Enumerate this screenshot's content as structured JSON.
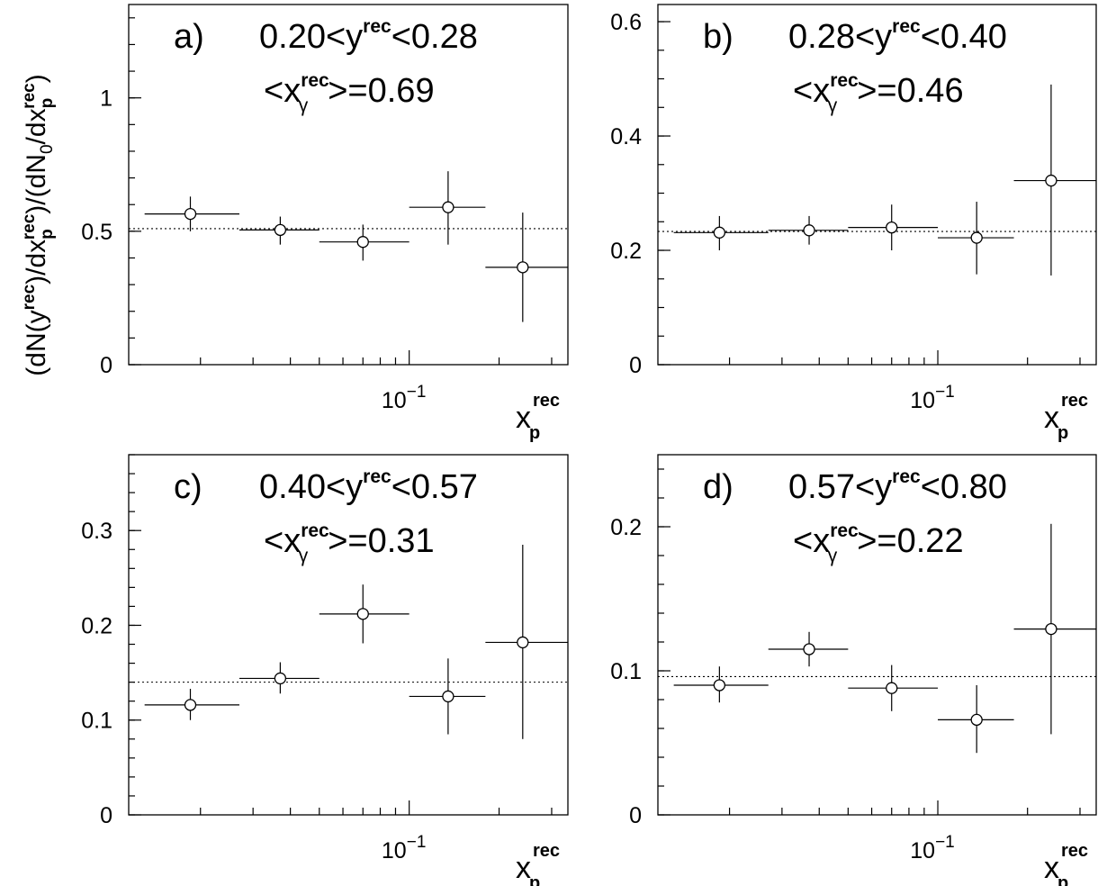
{
  "figure": {
    "ylabel": {
      "base": "(dN(y",
      "sup1": "rec",
      "mid1": ")/dx",
      "sub1": "p",
      "sup2": "rec",
      "mid2": ")/(dN",
      "sub2": "0",
      "mid3": "/dx",
      "sub3": "p",
      "sup3": "rec",
      "end": ")"
    }
  },
  "chart_data": [
    {
      "type": "scatter",
      "panel_label": "a)",
      "title": {
        "lo": "0.20<y",
        "sup": "rec",
        "hi": "<0.28"
      },
      "subtitle": {
        "pre": "<x",
        "sup": "rec",
        "sub": "γ",
        "post": ">=0.69"
      },
      "xlabel": {
        "base": "x",
        "sup": "rec",
        "sub": "p"
      },
      "xscale": "log",
      "xlim": [
        0.0115,
        0.34
      ],
      "ylim": [
        0,
        1.35
      ],
      "yticks": [
        0,
        0.5,
        1
      ],
      "ytick_labels": [
        "0",
        "0.5",
        "1"
      ],
      "yminor_step": 0.1,
      "xtick_label": {
        "base": "10",
        "exp": "−1",
        "value": 0.1
      },
      "reference_y": 0.51,
      "points": [
        {
          "x": 0.0185,
          "xlo": 0.013,
          "xhi": 0.027,
          "y": 0.565,
          "ylo": 0.5,
          "yhi": 0.63
        },
        {
          "x": 0.037,
          "xlo": 0.027,
          "xhi": 0.05,
          "y": 0.505,
          "ylo": 0.45,
          "yhi": 0.555
        },
        {
          "x": 0.07,
          "xlo": 0.05,
          "xhi": 0.1,
          "y": 0.46,
          "ylo": 0.39,
          "yhi": 0.525
        },
        {
          "x": 0.135,
          "xlo": 0.1,
          "xhi": 0.18,
          "y": 0.59,
          "ylo": 0.45,
          "yhi": 0.725
        },
        {
          "x": 0.24,
          "xlo": 0.18,
          "xhi": 0.34,
          "y": 0.365,
          "ylo": 0.16,
          "yhi": 0.57
        }
      ]
    },
    {
      "type": "scatter",
      "panel_label": "b)",
      "title": {
        "lo": "0.28<y",
        "sup": "rec",
        "hi": "<0.40"
      },
      "subtitle": {
        "pre": "<x",
        "sup": "rec",
        "sub": "γ",
        "post": ">=0.46"
      },
      "xlabel": {
        "base": "x",
        "sup": "rec",
        "sub": "p"
      },
      "xscale": "log",
      "xlim": [
        0.0115,
        0.34
      ],
      "ylim": [
        0,
        0.63
      ],
      "yticks": [
        0,
        0.2,
        0.4,
        0.6
      ],
      "ytick_labels": [
        "0",
        "0.2",
        "0.4",
        "0.6"
      ],
      "yminor_step": 0.05,
      "xtick_label": {
        "base": "10",
        "exp": "−1",
        "value": 0.1
      },
      "reference_y": 0.233,
      "points": [
        {
          "x": 0.0185,
          "xlo": 0.013,
          "xhi": 0.027,
          "y": 0.231,
          "ylo": 0.2,
          "yhi": 0.26
        },
        {
          "x": 0.037,
          "xlo": 0.027,
          "xhi": 0.05,
          "y": 0.235,
          "ylo": 0.21,
          "yhi": 0.26
        },
        {
          "x": 0.07,
          "xlo": 0.05,
          "xhi": 0.1,
          "y": 0.24,
          "ylo": 0.2,
          "yhi": 0.28
        },
        {
          "x": 0.135,
          "xlo": 0.1,
          "xhi": 0.18,
          "y": 0.222,
          "ylo": 0.158,
          "yhi": 0.285
        },
        {
          "x": 0.24,
          "xlo": 0.18,
          "xhi": 0.34,
          "y": 0.322,
          "ylo": 0.156,
          "yhi": 0.49
        }
      ]
    },
    {
      "type": "scatter",
      "panel_label": "c)",
      "title": {
        "lo": "0.40<y",
        "sup": "rec",
        "hi": "<0.57"
      },
      "subtitle": {
        "pre": "<x",
        "sup": "rec",
        "sub": "γ",
        "post": ">=0.31"
      },
      "xlabel": {
        "base": "x",
        "sup": "rec",
        "sub": "p"
      },
      "xscale": "log",
      "xlim": [
        0.0115,
        0.34
      ],
      "ylim": [
        0,
        0.38
      ],
      "yticks": [
        0,
        0.1,
        0.2,
        0.3
      ],
      "ytick_labels": [
        "0",
        "0.1",
        "0.2",
        "0.3"
      ],
      "yminor_step": 0.02,
      "xtick_label": {
        "base": "10",
        "exp": "−1",
        "value": 0.1
      },
      "reference_y": 0.14,
      "points": [
        {
          "x": 0.0185,
          "xlo": 0.013,
          "xhi": 0.027,
          "y": 0.116,
          "ylo": 0.1,
          "yhi": 0.133
        },
        {
          "x": 0.037,
          "xlo": 0.027,
          "xhi": 0.05,
          "y": 0.144,
          "ylo": 0.128,
          "yhi": 0.161
        },
        {
          "x": 0.07,
          "xlo": 0.05,
          "xhi": 0.1,
          "y": 0.212,
          "ylo": 0.181,
          "yhi": 0.243
        },
        {
          "x": 0.135,
          "xlo": 0.1,
          "xhi": 0.18,
          "y": 0.125,
          "ylo": 0.085,
          "yhi": 0.165
        },
        {
          "x": 0.24,
          "xlo": 0.18,
          "xhi": 0.34,
          "y": 0.182,
          "ylo": 0.08,
          "yhi": 0.285
        }
      ]
    },
    {
      "type": "scatter",
      "panel_label": "d)",
      "title": {
        "lo": "0.57<y",
        "sup": "rec",
        "hi": "<0.80"
      },
      "subtitle": {
        "pre": "<x",
        "sup": "rec",
        "sub": "γ",
        "post": ">=0.22"
      },
      "xlabel": {
        "base": "x",
        "sup": "rec",
        "sub": "p"
      },
      "xscale": "log",
      "xlim": [
        0.0115,
        0.34
      ],
      "ylim": [
        0,
        0.25
      ],
      "yticks": [
        0,
        0.1,
        0.2
      ],
      "ytick_labels": [
        "0",
        "0.1",
        "0.2"
      ],
      "yminor_step": 0.02,
      "xtick_label": {
        "base": "10",
        "exp": "−1",
        "value": 0.1
      },
      "reference_y": 0.096,
      "points": [
        {
          "x": 0.0185,
          "xlo": 0.013,
          "xhi": 0.027,
          "y": 0.09,
          "ylo": 0.078,
          "yhi": 0.103
        },
        {
          "x": 0.037,
          "xlo": 0.027,
          "xhi": 0.05,
          "y": 0.115,
          "ylo": 0.103,
          "yhi": 0.127
        },
        {
          "x": 0.07,
          "xlo": 0.05,
          "xhi": 0.1,
          "y": 0.088,
          "ylo": 0.072,
          "yhi": 0.104
        },
        {
          "x": 0.135,
          "xlo": 0.1,
          "xhi": 0.18,
          "y": 0.066,
          "ylo": 0.043,
          "yhi": 0.09
        },
        {
          "x": 0.24,
          "xlo": 0.18,
          "xhi": 0.34,
          "y": 0.129,
          "ylo": 0.056,
          "yhi": 0.202
        }
      ]
    }
  ]
}
